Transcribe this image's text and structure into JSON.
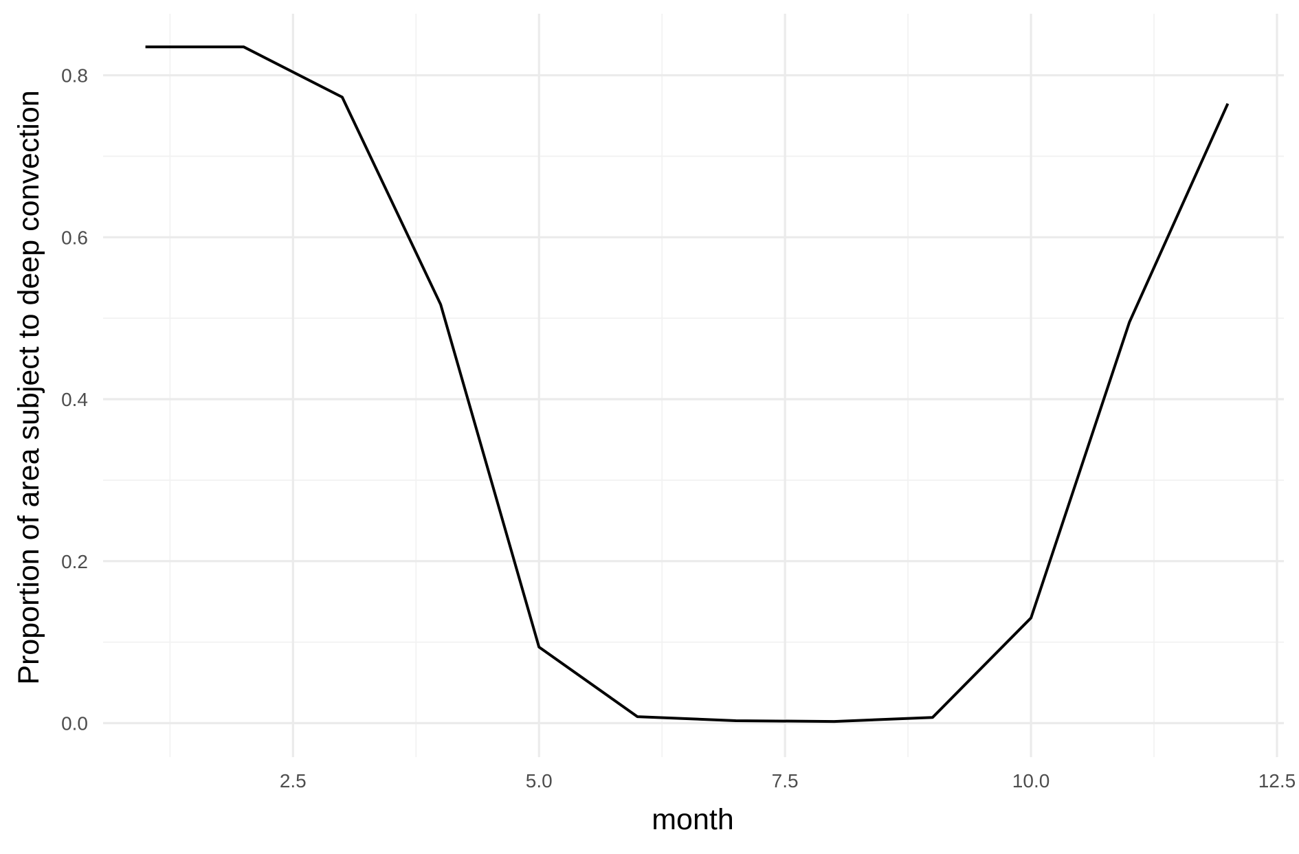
{
  "chart_data": {
    "type": "line",
    "title": "",
    "xlabel": "month",
    "ylabel": "Proportion of area subject to deep convection",
    "xlim": [
      0.57,
      12.57
    ],
    "ylim": [
      -0.042,
      0.876
    ],
    "x_major_ticks": [
      2.5,
      5.0,
      7.5,
      10.0,
      12.5
    ],
    "x_tick_labels": [
      "2.5",
      "5.0",
      "7.5",
      "10.0",
      "12.5"
    ],
    "x_minor_ticks": [
      1.25,
      3.75,
      6.25,
      8.75,
      11.25
    ],
    "y_major_ticks": [
      0.0,
      0.2,
      0.4,
      0.6,
      0.8
    ],
    "y_tick_labels": [
      "0.0",
      "0.2",
      "0.4",
      "0.6",
      "0.8"
    ],
    "y_minor_ticks": [
      0.1,
      0.3,
      0.5,
      0.7
    ],
    "grid": true,
    "legend": "none",
    "line_color": "#000000",
    "series": [
      {
        "x": [
          1,
          2,
          3,
          4,
          5,
          6,
          7,
          8,
          9,
          10,
          11,
          12
        ],
        "values": [
          0.835,
          0.835,
          0.773,
          0.517,
          0.094,
          0.008,
          0.003,
          0.002,
          0.007,
          0.13,
          0.495,
          0.765
        ]
      }
    ]
  }
}
